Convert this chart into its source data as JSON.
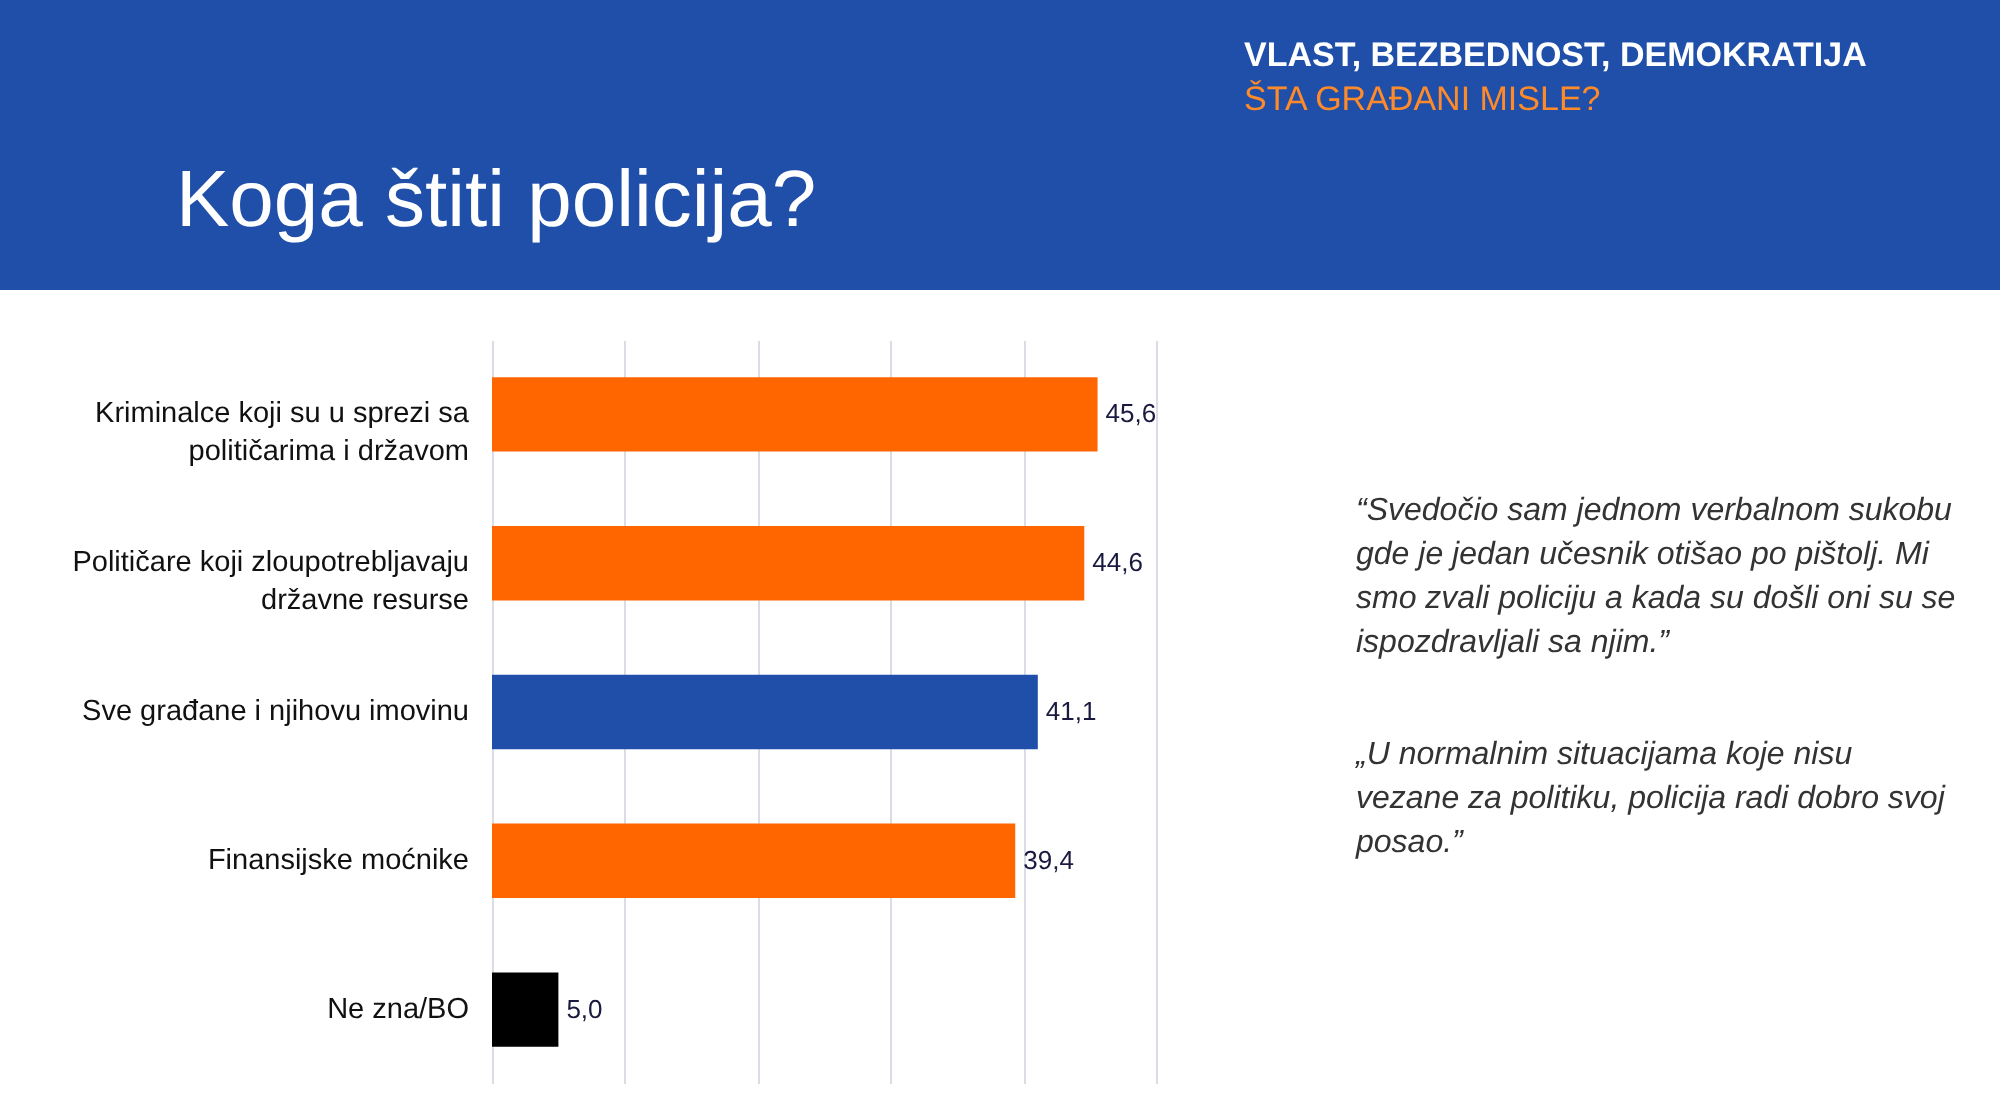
{
  "chart_data": {
    "type": "bar",
    "orientation": "horizontal",
    "title": "Koga štiti policija?",
    "subtitle": "VLAST, BEZBEDNOST, DEMOKRATIJA",
    "annotations": [
      "ŠTA GRAĐANI MISLE?",
      "“Svedočio sam jednom verbalnom sukobu gde je jedan učesnik otišao po pištolj. Mi smo zvali policiju a kada su došli oni su se ispozdravljali sa njim.”",
      "„U normalnim situacijama koje nisu vezane za politiku, policija radi dobro svoj posao.”"
    ],
    "categories": [
      "Kriminalce koji su u sprezi sa političarima i državom",
      "Političare koji zloupotrebljavaju državne resurse",
      "Sve građane i njihovu imovinu",
      "Finansijske moćnike",
      "Ne zna/BO"
    ],
    "values": [
      45.6,
      44.6,
      41.1,
      39.4,
      5.0
    ],
    "value_labels": [
      "45,6",
      "44,6",
      "41,1",
      "39,4",
      "5,0"
    ],
    "colors": [
      "#ff6600",
      "#ff6600",
      "#1f4fa8",
      "#ff6600",
      "#000000"
    ],
    "xlim": [
      0,
      50
    ],
    "xticks": [
      {
        "value": 0,
        "label": null
      },
      {
        "value": 10,
        "label": null
      },
      {
        "value": 20,
        "label": null
      },
      {
        "value": 30,
        "label": null
      },
      {
        "value": 40,
        "label": null
      },
      {
        "value": 50,
        "label": null
      }
    ],
    "grid": "x",
    "tick_labels": "y"
  }
}
